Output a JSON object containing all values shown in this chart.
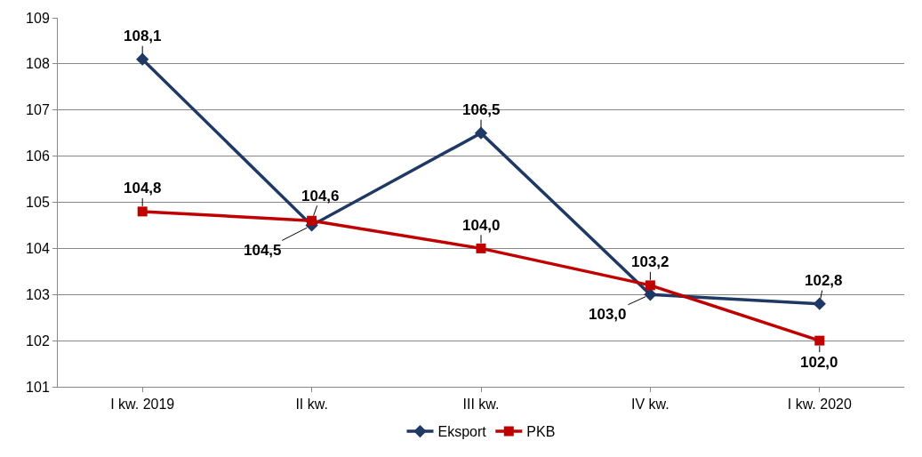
{
  "chart_data": {
    "type": "line",
    "categories": [
      "I kw. 2019",
      "II kw.",
      "III kw.",
      "IV kw.",
      "I kw. 2020"
    ],
    "series": [
      {
        "name": "Eksport",
        "color": "#1f3864",
        "marker": "diamond",
        "values": [
          108.1,
          104.5,
          106.5,
          103.0,
          102.8
        ],
        "value_labels": [
          "108,1",
          "104,5",
          "106,5",
          "103,0",
          "102,8"
        ]
      },
      {
        "name": "PKB",
        "color": "#c00000",
        "marker": "square",
        "values": [
          104.8,
          104.6,
          104.0,
          103.2,
          102.0
        ],
        "value_labels": [
          "104,8",
          "104,6",
          "104,0",
          "103,2",
          "102,0"
        ]
      }
    ],
    "ylim": [
      101,
      109
    ],
    "yticks": [
      101,
      102,
      103,
      104,
      105,
      106,
      107,
      108,
      109
    ],
    "grid": "y",
    "legend": "bottom",
    "line_style": "solid"
  }
}
